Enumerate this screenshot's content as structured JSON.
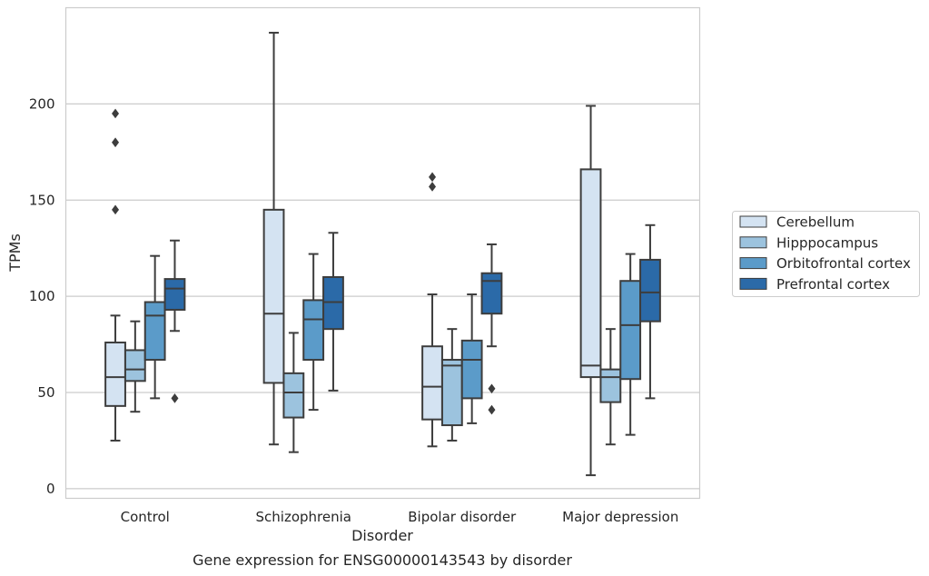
{
  "chart_data": {
    "type": "box",
    "categories": [
      "Control",
      "Schizophrenia",
      "Bipolar disorder",
      "Major depression"
    ],
    "xlabel": "Disorder",
    "ylabel": "TPMs",
    "caption": "Gene expression for ENSG00000143543 by disorder",
    "ylim": [
      -5,
      250
    ],
    "yticks": [
      0,
      50,
      100,
      150,
      200
    ],
    "grid": "horizontal",
    "legend_position": "right",
    "series": [
      {
        "name": "Cerebellum",
        "color": "#d4e3f2",
        "boxes": [
          {
            "whisker_low": 25,
            "q1": 43,
            "median": 58,
            "q3": 76,
            "whisker_high": 90,
            "outliers": [
              145,
              180,
              195
            ]
          },
          {
            "whisker_low": 23,
            "q1": 55,
            "median": 91,
            "q3": 145,
            "whisker_high": 237,
            "outliers": []
          },
          {
            "whisker_low": 22,
            "q1": 36,
            "median": 53,
            "q3": 74,
            "whisker_high": 101,
            "outliers": [
              157,
              162
            ]
          },
          {
            "whisker_low": 7,
            "q1": 58,
            "median": 64,
            "q3": 166,
            "whisker_high": 199,
            "outliers": []
          }
        ]
      },
      {
        "name": "Hipppocampus",
        "color": "#9cc3de",
        "boxes": [
          {
            "whisker_low": 40,
            "q1": 56,
            "median": 62,
            "q3": 72,
            "whisker_high": 87,
            "outliers": []
          },
          {
            "whisker_low": 19,
            "q1": 37,
            "median": 50,
            "q3": 60,
            "whisker_high": 81,
            "outliers": []
          },
          {
            "whisker_low": 25,
            "q1": 33,
            "median": 64,
            "q3": 67,
            "whisker_high": 83,
            "outliers": []
          },
          {
            "whisker_low": 23,
            "q1": 45,
            "median": 58,
            "q3": 62,
            "whisker_high": 83,
            "outliers": []
          }
        ]
      },
      {
        "name": "Orbitofrontal cortex",
        "color": "#5b9bc9",
        "boxes": [
          {
            "whisker_low": 47,
            "q1": 67,
            "median": 90,
            "q3": 97,
            "whisker_high": 121,
            "outliers": []
          },
          {
            "whisker_low": 41,
            "q1": 67,
            "median": 88,
            "q3": 98,
            "whisker_high": 122,
            "outliers": []
          },
          {
            "whisker_low": 34,
            "q1": 47,
            "median": 67,
            "q3": 77,
            "whisker_high": 101,
            "outliers": []
          },
          {
            "whisker_low": 28,
            "q1": 57,
            "median": 85,
            "q3": 108,
            "whisker_high": 122,
            "outliers": []
          }
        ]
      },
      {
        "name": "Prefrontal cortex",
        "color": "#2b6aa8",
        "boxes": [
          {
            "whisker_low": 82,
            "q1": 93,
            "median": 104,
            "q3": 109,
            "whisker_high": 129,
            "outliers": [
              47
            ]
          },
          {
            "whisker_low": 51,
            "q1": 83,
            "median": 97,
            "q3": 110,
            "whisker_high": 133,
            "outliers": []
          },
          {
            "whisker_low": 74,
            "q1": 91,
            "median": 108,
            "q3": 112,
            "whisker_high": 127,
            "outliers": [
              52,
              41
            ]
          },
          {
            "whisker_low": 47,
            "q1": 87,
            "median": 102,
            "q3": 119,
            "whisker_high": 137,
            "outliers": []
          }
        ]
      }
    ]
  }
}
